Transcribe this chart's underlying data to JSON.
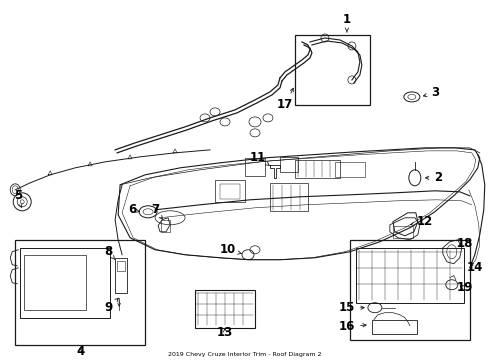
{
  "title": "2019 Chevy Cruze Interior Trim - Roof Diagram 2",
  "background_color": "#ffffff",
  "line_color": "#1a1a1a",
  "label_color": "#000000",
  "fig_width": 4.89,
  "fig_height": 3.6,
  "dpi": 100,
  "label_fontsize": 8.5
}
